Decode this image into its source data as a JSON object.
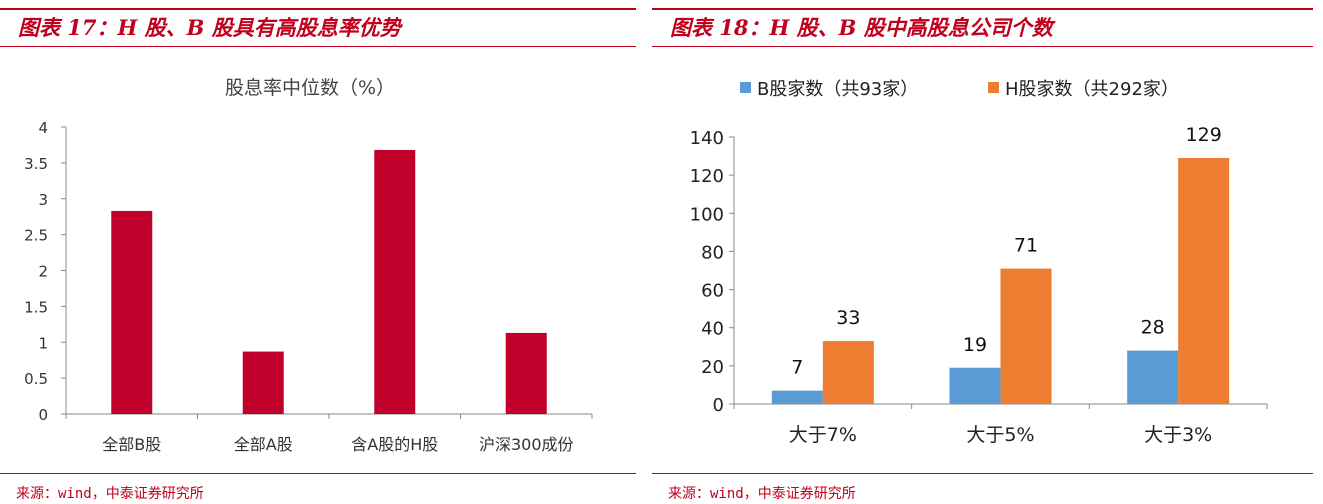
{
  "panels": [
    {
      "title": "图表 17：H 股、B 股具有高股息率优势",
      "source": "来源：wind，中泰证券研究所"
    },
    {
      "title": "图表 18：H 股、B 股中高股息公司个数",
      "source": "来源：wind，中泰证券研究所"
    }
  ],
  "chart_data": [
    {
      "type": "bar",
      "title": "股息率中位数（%）",
      "categories": [
        "全部B股",
        "全部A股",
        "含A股的H股",
        "沪深300成份"
      ],
      "values": [
        2.83,
        0.87,
        3.68,
        1.13
      ],
      "yticks": [
        "0",
        "0.5",
        "1",
        "1.5",
        "2",
        "2.5",
        "3",
        "3.5",
        "4"
      ],
      "ylim": [
        0,
        4
      ],
      "grid": false,
      "color": "#c0002a"
    },
    {
      "type": "bar",
      "categories": [
        "大于7%",
        "大于5%",
        "大于3%"
      ],
      "series": [
        {
          "name": "B股家数（共93家）",
          "values": [
            7,
            19,
            28
          ],
          "color": "#5b9bd5"
        },
        {
          "name": "H股家数（共292家）",
          "values": [
            33,
            71,
            129
          ],
          "color": "#ed7d31"
        }
      ],
      "yticks": [
        "0",
        "20",
        "40",
        "60",
        "80",
        "100",
        "120",
        "140"
      ],
      "ylim": [
        0,
        140
      ],
      "grid": false,
      "legend": "top",
      "data_labels": true
    }
  ]
}
